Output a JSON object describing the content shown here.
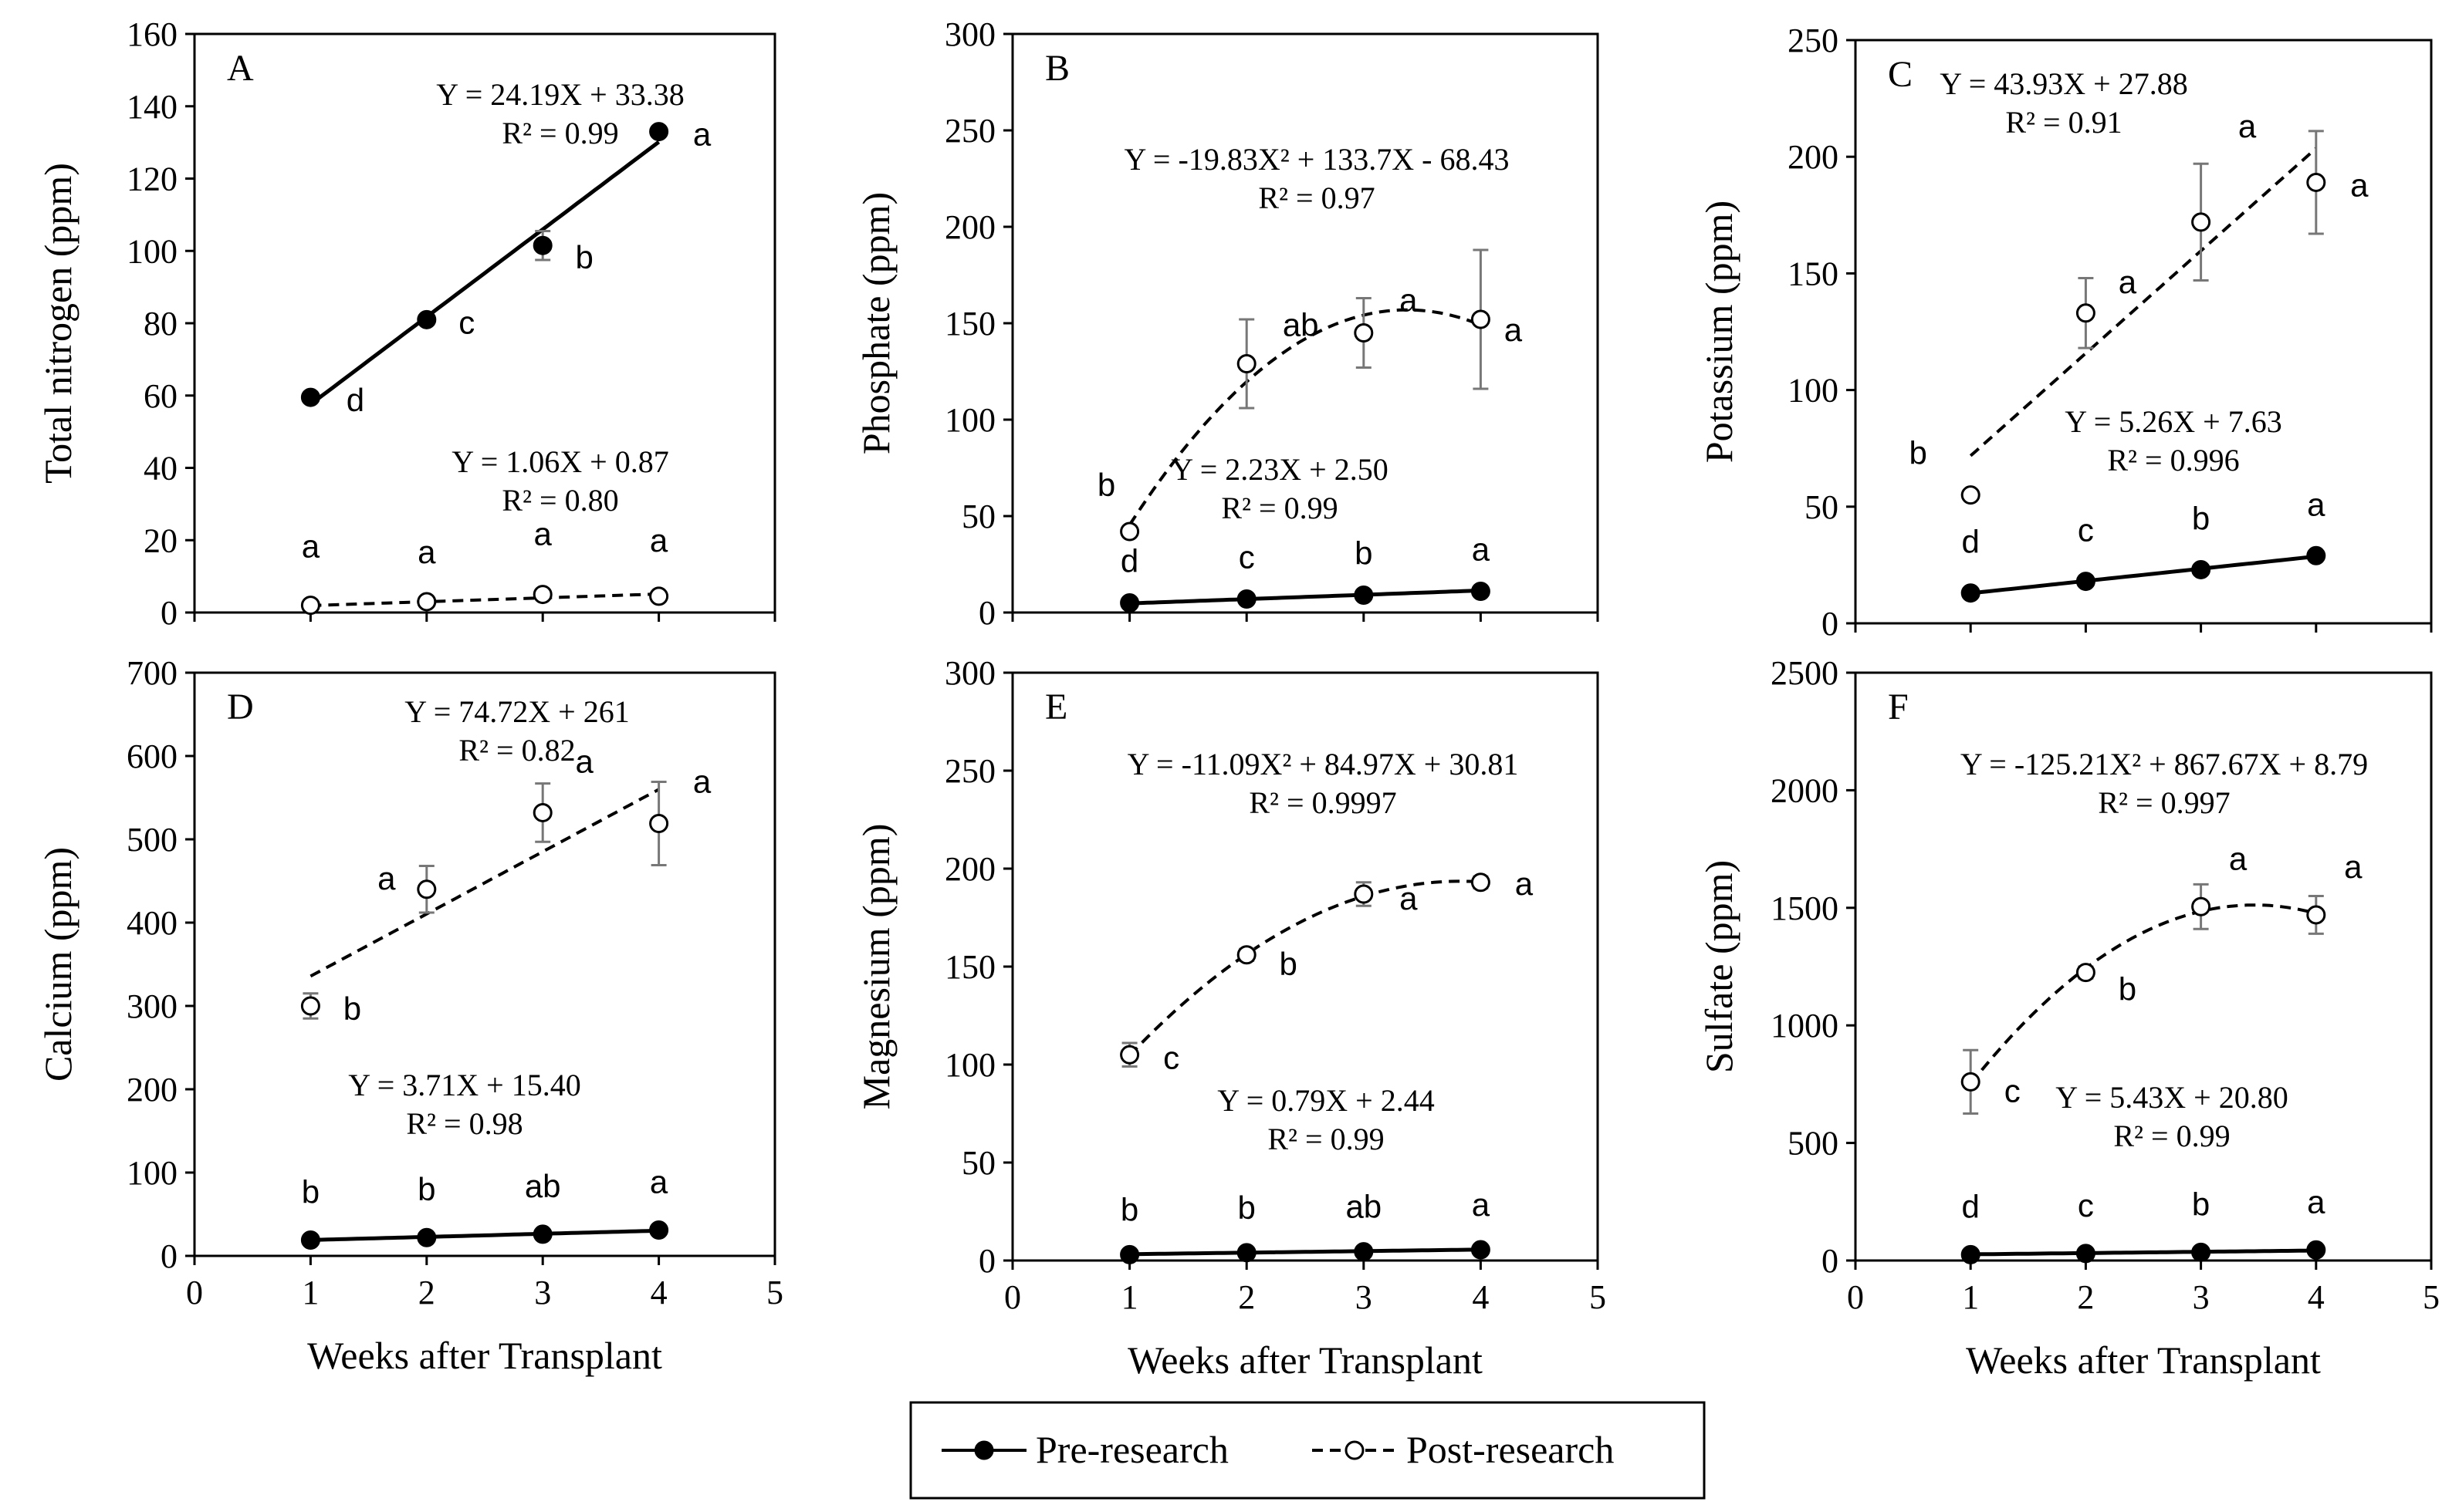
{
  "chart_data": {
    "type": "scatter",
    "x_label": "Weeks after Transplant",
    "x_range": [
      0,
      5
    ],
    "x_ticks": [
      "0",
      "1",
      "2",
      "3",
      "4",
      "5"
    ],
    "legend": {
      "placement": "bottom-center",
      "entries": [
        {
          "name": "Pre-research",
          "style": "solid line, filled circle",
          "color": "#000000"
        },
        {
          "name": "Post-research",
          "style": "dashed line, open circle",
          "color": "#000000"
        }
      ]
    },
    "panels": [
      {
        "letter": "A",
        "ylabel": "Total nitrogen (ppm)",
        "ylim": [
          0,
          160
        ],
        "y_ticks": [
          "0",
          "20",
          "40",
          "60",
          "80",
          "100",
          "120",
          "140",
          "160"
        ],
        "show_x_axis_labels": false,
        "pre": {
          "x": [
            1,
            2,
            3,
            4
          ],
          "y": [
            59.5,
            81,
            101.5,
            133
          ],
          "err": [
            0,
            0,
            4,
            0
          ],
          "letters": [
            "d",
            "c",
            "b",
            "a"
          ],
          "equation": "Y = 24.19X + 33.38",
          "r2": "R² = 0.99",
          "fit": {
            "kind": "linear",
            "coef": [
              33.38,
              24.19
            ]
          }
        },
        "post": {
          "x": [
            1,
            2,
            3,
            4
          ],
          "y": [
            2,
            3,
            5,
            4.5
          ],
          "err": [
            0,
            0,
            0,
            0
          ],
          "letters": [
            "a",
            "a",
            "a",
            "a"
          ],
          "equation": "Y = 1.06X + 0.87",
          "r2": "R² = 0.80",
          "fit": {
            "kind": "linear",
            "coef": [
              0.87,
              1.06
            ]
          }
        }
      },
      {
        "letter": "B",
        "ylabel": "Phosphate (ppm)",
        "ylim": [
          0,
          300
        ],
        "y_ticks": [
          "0",
          "50",
          "100",
          "150",
          "200",
          "250",
          "300"
        ],
        "show_x_axis_labels": false,
        "pre": {
          "x": [
            1,
            2,
            3,
            4
          ],
          "y": [
            5,
            7,
            9,
            11
          ],
          "err": [
            0,
            0,
            0,
            0
          ],
          "letters": [
            "d",
            "c",
            "b",
            "a"
          ],
          "equation": "Y = 2.23X + 2.50",
          "r2": "R² = 0.99",
          "fit": {
            "kind": "linear",
            "coef": [
              2.5,
              2.23
            ]
          }
        },
        "post": {
          "x": [
            1,
            2,
            3,
            4
          ],
          "y": [
            42,
            129,
            145,
            152
          ],
          "err": [
            0,
            23,
            18,
            36
          ],
          "letters": [
            "b",
            "ab",
            "a",
            "a"
          ],
          "equation": "Y = -19.83X² + 133.7X - 68.43",
          "r2": "R² = 0.97",
          "fit": {
            "kind": "quadratic",
            "coef": [
              -68.43,
              133.7,
              -19.83
            ]
          }
        }
      },
      {
        "letter": "C",
        "ylabel": "Potassium (ppm)",
        "ylim": [
          0,
          250
        ],
        "y_ticks": [
          "0",
          "50",
          "100",
          "150",
          "200",
          "250"
        ],
        "show_x_axis_labels": false,
        "pre": {
          "x": [
            1,
            2,
            3,
            4
          ],
          "y": [
            13,
            18,
            23,
            29
          ],
          "err": [
            0,
            0,
            0,
            0
          ],
          "letters": [
            "d",
            "c",
            "b",
            "a"
          ],
          "equation": "Y = 5.26X + 7.63",
          "r2": "R² = 0.996",
          "fit": {
            "kind": "linear",
            "coef": [
              7.63,
              5.26
            ]
          }
        },
        "post": {
          "x": [
            1,
            2,
            3,
            4
          ],
          "y": [
            55,
            133,
            172,
            189
          ],
          "err": [
            0,
            15,
            25,
            22
          ],
          "letters": [
            "b",
            "a",
            "a",
            "a"
          ],
          "equation": "Y = 43.93X + 27.88",
          "r2": "R² = 0.91",
          "fit": {
            "kind": "linear",
            "coef": [
              27.88,
              43.93
            ]
          }
        }
      },
      {
        "letter": "D",
        "ylabel": "Calcium (ppm)",
        "ylim": [
          0,
          700
        ],
        "y_ticks": [
          "0",
          "100",
          "200",
          "300",
          "400",
          "500",
          "600",
          "700"
        ],
        "show_x_axis_labels": true,
        "pre": {
          "x": [
            1,
            2,
            3,
            4
          ],
          "y": [
            19,
            22,
            26,
            31
          ],
          "err": [
            0,
            0,
            0,
            0
          ],
          "letters": [
            "b",
            "b",
            "ab",
            "a"
          ],
          "equation": "Y = 3.71X + 15.40",
          "r2": "R² = 0.98",
          "fit": {
            "kind": "linear",
            "coef": [
              15.4,
              3.71
            ]
          }
        },
        "post": {
          "x": [
            1,
            2,
            3,
            4
          ],
          "y": [
            300,
            440,
            532,
            519
          ],
          "err": [
            15,
            28,
            35,
            50
          ],
          "letters": [
            "b",
            "a",
            "a",
            "a"
          ],
          "equation": "Y = 74.72X + 261",
          "r2": "R² = 0.82",
          "fit": {
            "kind": "linear",
            "coef": [
              261,
              74.72
            ]
          }
        }
      },
      {
        "letter": "E",
        "ylabel": "Magnesium (ppm)",
        "ylim": [
          0,
          300
        ],
        "y_ticks": [
          "0",
          "50",
          "100",
          "150",
          "200",
          "250",
          "300"
        ],
        "show_x_axis_labels": true,
        "pre": {
          "x": [
            1,
            2,
            3,
            4
          ],
          "y": [
            3,
            4,
            4.5,
            5.5
          ],
          "err": [
            0,
            0,
            0,
            0
          ],
          "letters": [
            "b",
            "b",
            "ab",
            "a"
          ],
          "equation": "Y = 0.79X + 2.44",
          "r2": "R² = 0.99",
          "fit": {
            "kind": "linear",
            "coef": [
              2.44,
              0.79
            ]
          }
        },
        "post": {
          "x": [
            1,
            2,
            3,
            4
          ],
          "y": [
            105,
            156,
            187,
            193
          ],
          "err": [
            6,
            3,
            6,
            3
          ],
          "letters": [
            "c",
            "b",
            "a",
            "a"
          ],
          "equation": "Y = -11.09X² + 84.97X + 30.81",
          "r2": "R² = 0.9997",
          "fit": {
            "kind": "quadratic",
            "coef": [
              30.81,
              84.97,
              -11.09
            ]
          }
        }
      },
      {
        "letter": "F",
        "ylabel": "Sulfate (ppm)",
        "ylim": [
          0,
          2500
        ],
        "y_ticks": [
          "0",
          "500",
          "1000",
          "1500",
          "2000",
          "2500"
        ],
        "show_x_axis_labels": true,
        "pre": {
          "x": [
            1,
            2,
            3,
            4
          ],
          "y": [
            25,
            30,
            35,
            45
          ],
          "err": [
            0,
            0,
            0,
            0
          ],
          "letters": [
            "d",
            "c",
            "b",
            "a"
          ],
          "equation": "Y = 5.43X + 20.80",
          "r2": "R² = 0.99",
          "fit": {
            "kind": "linear",
            "coef": [
              20.8,
              5.43
            ]
          }
        },
        "post": {
          "x": [
            1,
            2,
            3,
            4
          ],
          "y": [
            760,
            1225,
            1505,
            1470
          ],
          "err": [
            135,
            25,
            95,
            80
          ],
          "letters": [
            "c",
            "b",
            "a",
            "a"
          ],
          "equation": "Y = -125.21X² + 867.67X + 8.79",
          "r2": "R² = 0.997",
          "fit": {
            "kind": "quadratic",
            "coef": [
              8.79,
              867.67,
              -125.21
            ]
          }
        }
      }
    ]
  }
}
